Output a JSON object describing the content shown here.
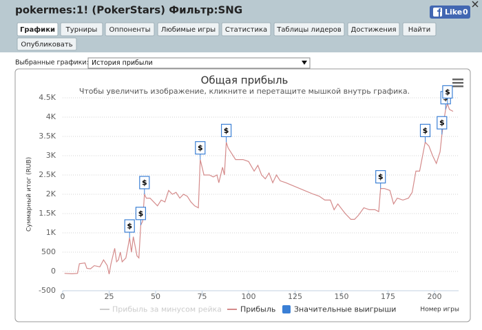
{
  "window": {
    "title": "pokermes:1! (PokerStars) Фильтр:SNG",
    "like_label": "Like",
    "like_count": "0"
  },
  "tabs": [
    "Графики",
    "Турниры",
    "Оппоненты",
    "Любимые игры",
    "Статистика",
    "Таблицы лидеров",
    "Достижения",
    "Найти"
  ],
  "publish_tab": "Опубликовать",
  "selector": {
    "label": "Выбранные графики:",
    "value": "История прибыли"
  },
  "chart_data": {
    "type": "line",
    "title": "Общая прибыль",
    "subtitle": "Чтобы увеличить изображение, кликните и перетащите мышкой внутрь графика.",
    "y_label": "Суммарный итог (RUB)",
    "x_label": "Номер игры",
    "marker_symbol": "$",
    "xlim": [
      0,
      213
    ],
    "xticks": [
      0,
      25,
      50,
      75,
      100,
      125,
      150,
      175,
      200
    ],
    "ylim": [
      -500,
      4500
    ],
    "yticks": [
      -500,
      0,
      500,
      {
        "value": 1000,
        "label": "1K"
      },
      {
        "value": 1500,
        "label": "1.5K"
      },
      {
        "value": 2000,
        "label": "2K"
      },
      {
        "value": 2500,
        "label": "2.5K"
      },
      {
        "value": 3000,
        "label": "3K"
      },
      {
        "value": 3500,
        "label": "3.5K"
      },
      {
        "value": 4000,
        "label": "4K"
      },
      {
        "value": 4500,
        "label": "4.5K"
      }
    ],
    "grid": true,
    "series": [
      {
        "name": "Прибыль за минусом рейка",
        "color": "#cccccc",
        "visible": false
      },
      {
        "name": "Прибыль",
        "color": "#d48a8a",
        "x": [
          1,
          5,
          8,
          9,
          12,
          13,
          15,
          17,
          20,
          22,
          24,
          25,
          26,
          28,
          29,
          30,
          31,
          32,
          34,
          35,
          36,
          37,
          38,
          40,
          41,
          42,
          43,
          44,
          45,
          47,
          49,
          51,
          53,
          55,
          57,
          59,
          61,
          63,
          65,
          67,
          69,
          71,
          73,
          74,
          75,
          76,
          79,
          81,
          83,
          84,
          86,
          87,
          88,
          89,
          91,
          93,
          97,
          100,
          103,
          105,
          107,
          109,
          111,
          113,
          115,
          117,
          120,
          125,
          130,
          135,
          138,
          141,
          144,
          146,
          148,
          152,
          155,
          157,
          159,
          162,
          165,
          168,
          170,
          171,
          173,
          176,
          178,
          180,
          183,
          186,
          188,
          190,
          192,
          194,
          195,
          197,
          199,
          201,
          203,
          204,
          205,
          206,
          207,
          208,
          210
        ],
        "values": [
          -50,
          -60,
          -50,
          200,
          220,
          80,
          70,
          150,
          120,
          300,
          150,
          -70,
          200,
          600,
          250,
          300,
          500,
          250,
          350,
          600,
          875,
          500,
          900,
          400,
          350,
          1200,
          1300,
          2000,
          1900,
          1900,
          1800,
          1700,
          1850,
          1800,
          2100,
          2000,
          2050,
          1900,
          2000,
          1950,
          1800,
          1700,
          1650,
          2900,
          2700,
          2500,
          2500,
          2450,
          2500,
          2300,
          2700,
          2500,
          3350,
          3200,
          3050,
          2900,
          2900,
          2850,
          2600,
          2750,
          2500,
          2400,
          2550,
          2300,
          2500,
          2350,
          2300,
          2200,
          2100,
          2000,
          1950,
          1850,
          1850,
          1600,
          1750,
          1500,
          1350,
          1350,
          1450,
          1650,
          1600,
          1600,
          1550,
          2150,
          2150,
          2100,
          1750,
          1900,
          1850,
          1900,
          2050,
          2600,
          2600,
          3100,
          3350,
          3250,
          3000,
          2800,
          3100,
          3550,
          3900,
          4200,
          4350,
          4200,
          4150
        ]
      },
      {
        "name": "Значительные выигрыши",
        "color": "#3a7fd5",
        "x": [
          36,
          42,
          44,
          74,
          88,
          171,
          195,
          204,
          206,
          207
        ],
        "values": [
          875,
          1200,
          2000,
          2900,
          3350,
          2150,
          3350,
          3550,
          4200,
          4350
        ]
      }
    ]
  }
}
